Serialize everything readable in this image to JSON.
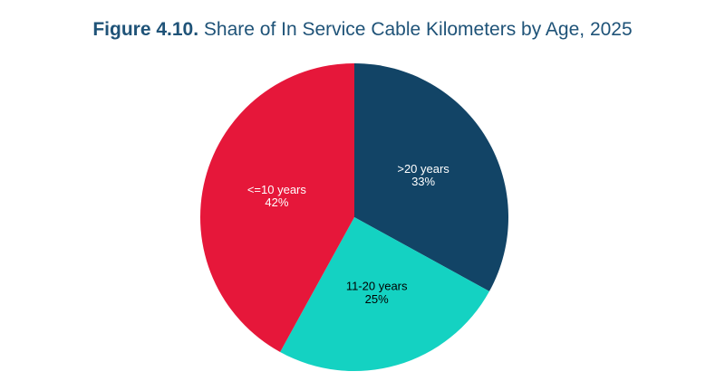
{
  "chart_data": {
    "type": "pie",
    "figure_label": "Figure 4.10.",
    "title": "Share of In Service Cable Kilometers by Age, 2025",
    "categories": [
      ">20 years",
      "11-20 years",
      "<=10 years"
    ],
    "values": [
      33,
      25,
      42
    ],
    "value_labels": [
      "33%",
      "25%",
      "42%"
    ],
    "colors": [
      "#124466",
      "#14d2c2",
      "#e6173a"
    ]
  }
}
